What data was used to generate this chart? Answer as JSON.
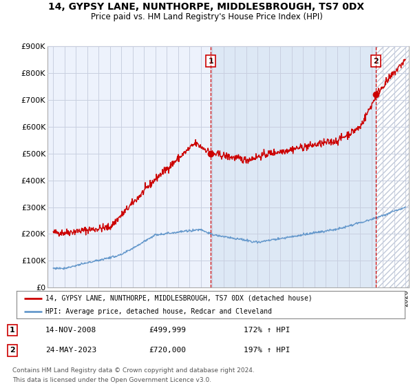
{
  "title": "14, GYPSY LANE, NUNTHORPE, MIDDLESBROUGH, TS7 0DX",
  "subtitle": "Price paid vs. HM Land Registry's House Price Index (HPI)",
  "legend_line1": "14, GYPSY LANE, NUNTHORPE, MIDDLESBROUGH, TS7 0DX (detached house)",
  "legend_line2": "HPI: Average price, detached house, Redcar and Cleveland",
  "footer": "Contains HM Land Registry data © Crown copyright and database right 2024.\nThis data is licensed under the Open Government Licence v3.0.",
  "point1_date": "14-NOV-2008",
  "point1_price": "£499,999",
  "point1_hpi": "172% ↑ HPI",
  "point2_date": "24-MAY-2023",
  "point2_price": "£720,000",
  "point2_hpi": "197% ↑ HPI",
  "red_color": "#cc0000",
  "blue_color": "#6699cc",
  "shade_color": "#dde8f5",
  "hatch_color": "#c0c8d8",
  "background_color": "#edf2fc",
  "grid_color": "#c8cfe0",
  "ylim": [
    0,
    900000
  ],
  "yticks": [
    0,
    100000,
    200000,
    300000,
    400000,
    500000,
    600000,
    700000,
    800000,
    900000
  ],
  "vline1_x": 2008.87,
  "vline2_x": 2023.39,
  "marker1_price": 499999,
  "marker1_x": 2008.87,
  "marker2_price": 720000,
  "marker2_x": 2023.39,
  "xlim_left": 1994.5,
  "xlim_right": 2026.3
}
